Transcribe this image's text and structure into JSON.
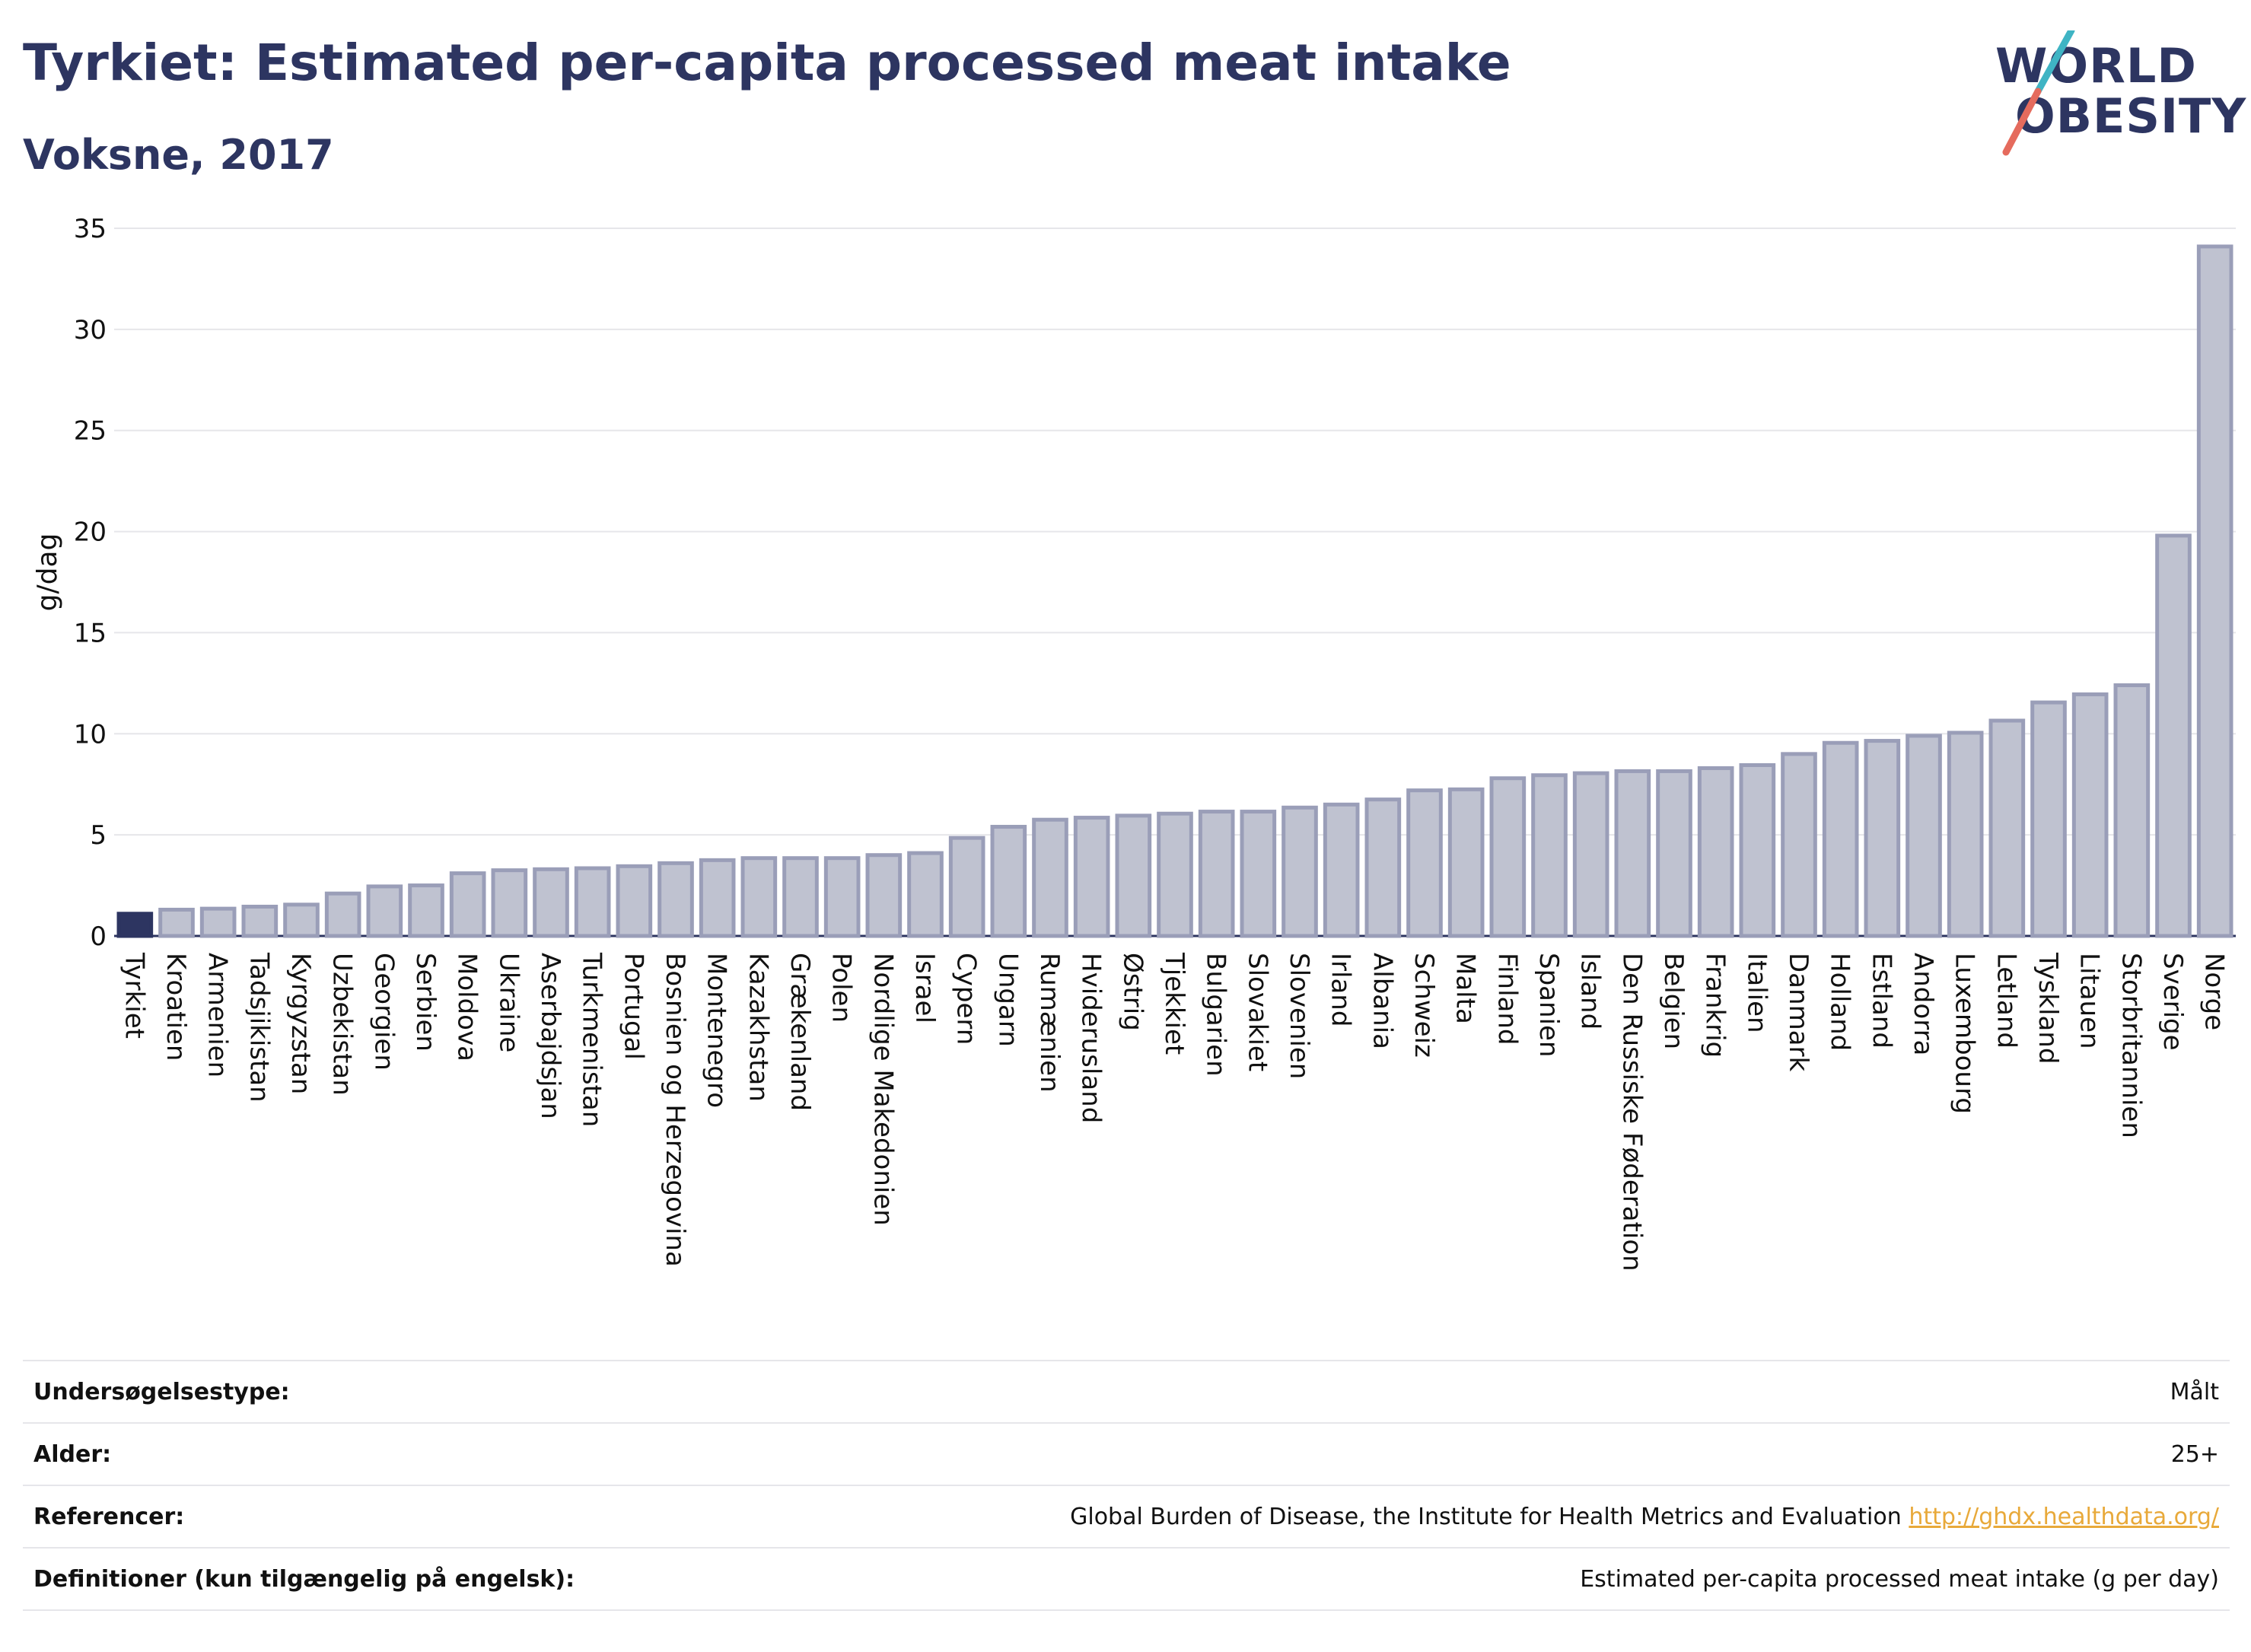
{
  "header": {
    "title": "Tyrkiet: Estimated per-capita processed meat intake",
    "subtitle": "Voksne, 2017"
  },
  "logo": {
    "line1": "WORLD",
    "line2": "OBESITY",
    "colors": {
      "text": "#2d3561",
      "slash_top": "#3fb4c4",
      "slash_bottom": "#e56b5d"
    }
  },
  "chart_data": {
    "type": "bar",
    "ylabel": "g/dag",
    "ylim": [
      0,
      35
    ],
    "yticks": [
      0,
      5,
      10,
      15,
      20,
      25,
      30,
      35
    ],
    "grid": true,
    "highlight_category": "Tyrkiet",
    "colors": {
      "highlight": "#2d3561",
      "bar_fill": "#bfc2d0",
      "bar_stroke": "#9a9eb8",
      "grid": "#e6e6ea"
    },
    "categories": [
      "Tyrkiet",
      "Kroatien",
      "Armenien",
      "Tadsjikistan",
      "Kyrgyzstan",
      "Uzbekistan",
      "Georgien",
      "Serbien",
      "Moldova",
      "Ukraine",
      "Aserbajdsjan",
      "Turkmenistan",
      "Portugal",
      "Bosnien og Herzegovina",
      "Montenegro",
      "Kazakhstan",
      "Grækenland",
      "Polen",
      "Nordlige Makedonien",
      "Israel",
      "Cypern",
      "Ungarn",
      "Rumænien",
      "Hviderusland",
      "Østrig",
      "Tjekkiet",
      "Bulgarien",
      "Slovakiet",
      "Slovenien",
      "Irland",
      "Albania",
      "Schweiz",
      "Malta",
      "Finland",
      "Spanien",
      "Island",
      "Den Russiske Føderation",
      "Belgien",
      "Frankrig",
      "Italien",
      "Danmark",
      "Holland",
      "Estland",
      "Andorra",
      "Luxembourg",
      "Letland",
      "Tyskland",
      "Litauen",
      "Storbritannien",
      "Sverige",
      "Norge"
    ],
    "values": [
      1.1,
      1.3,
      1.35,
      1.45,
      1.55,
      2.1,
      2.45,
      2.5,
      3.1,
      3.25,
      3.3,
      3.35,
      3.45,
      3.6,
      3.75,
      3.85,
      3.85,
      3.85,
      4.0,
      4.1,
      4.85,
      5.4,
      5.75,
      5.85,
      5.95,
      6.05,
      6.15,
      6.15,
      6.35,
      6.5,
      6.75,
      7.2,
      7.25,
      7.8,
      7.95,
      8.05,
      8.15,
      8.15,
      8.3,
      8.45,
      9.0,
      9.55,
      9.65,
      9.9,
      10.05,
      10.65,
      11.55,
      11.95,
      12.4,
      19.8,
      34.1
    ]
  },
  "info": {
    "rows": [
      {
        "label": "Undersøgelsestype:",
        "value": "Målt"
      },
      {
        "label": "Alder:",
        "value": "25+"
      },
      {
        "label": "Referencer:",
        "value": "Global Burden of Disease, the Institute for Health Metrics and Evaluation",
        "link": "http://ghdx.healthdata.org/"
      },
      {
        "label": "Definitioner (kun tilgængelig på engelsk):",
        "value": "Estimated per-capita processed meat intake (g per day)"
      }
    ]
  }
}
